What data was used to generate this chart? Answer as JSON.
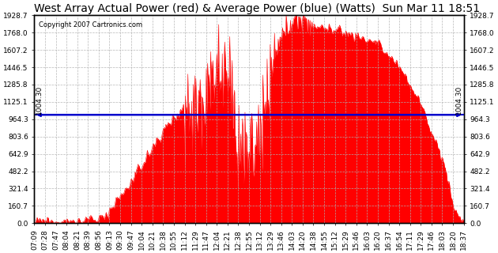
{
  "title": "West Array Actual Power (red) & Average Power (blue) (Watts)  Sun Mar 11 18:51",
  "copyright": "Copyright 2007 Cartronics.com",
  "avg_power": 1004.3,
  "y_max": 1928.7,
  "y_ticks": [
    0.0,
    160.7,
    321.4,
    482.2,
    642.9,
    803.6,
    964.3,
    1125.1,
    1285.8,
    1446.5,
    1607.2,
    1768.0,
    1928.7
  ],
  "x_labels": [
    "07:09",
    "07:28",
    "07:47",
    "08:04",
    "08:21",
    "08:39",
    "08:56",
    "09:13",
    "09:30",
    "09:47",
    "10:04",
    "10:21",
    "10:38",
    "10:55",
    "11:12",
    "11:29",
    "11:47",
    "12:04",
    "12:21",
    "12:38",
    "12:55",
    "13:12",
    "13:29",
    "13:46",
    "14:03",
    "14:20",
    "14:38",
    "14:55",
    "15:12",
    "15:29",
    "15:46",
    "16:03",
    "16:20",
    "16:37",
    "16:54",
    "17:11",
    "17:29",
    "17:46",
    "18:03",
    "18:20",
    "18:37"
  ],
  "background_color": "#ffffff",
  "fill_color": "#ff0000",
  "line_color": "#0000cc",
  "grid_color": "#b0b0b0",
  "title_fontsize": 10,
  "label_fontsize": 6.5,
  "avg_label_fontsize": 6.5
}
